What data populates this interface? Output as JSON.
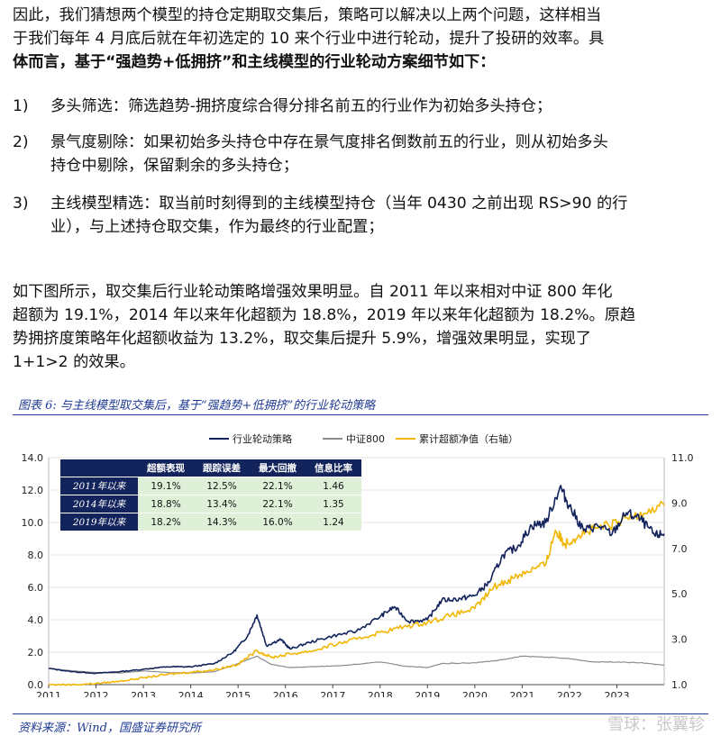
{
  "intro": {
    "line1": "因此，我们猜想两个模型的持仓定期取交集后，策略可以解决以上两个问题，这样相当",
    "line2": "于我们每年 4 月底后就在年初选定的 10 来个行业中进行轮动，提升了投研的效率。具",
    "line3": "体而言，基于“强趋势+低拥挤”和主线模型的行业轮动方案细节如下："
  },
  "items": [
    {
      "num": "1)",
      "lines": [
        "多头筛选：筛选趋势-拥挤度综合得分排名前五的行业作为初始多头持仓；"
      ]
    },
    {
      "num": "2)",
      "lines": [
        "景气度剔除：如果初始多头持仓中存在景气度排名倒数前五的行业，则从初始多头",
        "持仓中剔除，保留剩余的多头持仓；"
      ]
    },
    {
      "num": "3)",
      "lines": [
        "主线模型精选：取当前时刻得到的主线模型持仓（当年 0430 之前出现 RS>90 的行",
        "业），与上述持仓取交集，作为最终的行业配置；"
      ]
    }
  ],
  "summary": {
    "line1": "如下图所示，取交集后行业轮动策略增强效果明显。自 2011 年以来相对中证 800 年化",
    "line2": "超额为 19.1%，2014 年以来年化超额为 18.8%，2019 年以来年化超额为 18.2%。原趋",
    "line3": "势拥挤度策略年化超额收益为 13.2%，取交集后提升 5.9%，增强效果明显，实现了",
    "line4": "1+1>2 的效果。"
  },
  "figure": {
    "caption": "图表 6:  与主线模型取交集后，基于“强趋势+低拥挤”的行业轮动策略",
    "source": "资料来源：Wind，国盛证券研究所"
  },
  "watermark": "雪球：张翼轸",
  "stats_table": {
    "headers": [
      "",
      "超额表现",
      "跟踪误差",
      "最大回撤",
      "信息比率"
    ],
    "rows": [
      [
        "2011年以来",
        "19.1%",
        "12.5%",
        "22.1%",
        "1.46"
      ],
      [
        "2014年以来",
        "18.8%",
        "13.4%",
        "22.1%",
        "1.35"
      ],
      [
        "2019年以来",
        "18.2%",
        "14.3%",
        "16.0%",
        "1.24"
      ]
    ]
  },
  "chart_data": {
    "type": "line",
    "legend": [
      "行业轮动策略",
      "中证800",
      "累计超额净值（右轴）"
    ],
    "legend_position": "top",
    "colors": {
      "strategy": "#13235b",
      "csi800": "#8c8c8c",
      "excess": "#f2b705"
    },
    "x_ticks": [
      "2011",
      "2012",
      "2013",
      "2014",
      "2015",
      "2016",
      "2017",
      "2018",
      "2019",
      "2020",
      "2021",
      "2022",
      "2023"
    ],
    "y_left_ticks": [
      "0.0",
      "2.0",
      "4.0",
      "6.0",
      "8.0",
      "10.0",
      "12.0",
      "14.0"
    ],
    "y_right_ticks": [
      "1.0",
      "3.0",
      "5.0",
      "7.0",
      "9.0",
      "11.0"
    ],
    "ylim_left": [
      0,
      14
    ],
    "ylim_right": [
      1,
      11
    ],
    "xlim": [
      2011,
      2024
    ],
    "series": [
      {
        "name": "行业轮动策略",
        "axis": "left",
        "points": [
          [
            2011.0,
            1.0
          ],
          [
            2011.5,
            0.8
          ],
          [
            2012.0,
            0.7
          ],
          [
            2012.5,
            0.8
          ],
          [
            2013.0,
            0.95
          ],
          [
            2013.5,
            1.1
          ],
          [
            2014.0,
            1.1
          ],
          [
            2014.5,
            1.3
          ],
          [
            2014.9,
            2.0
          ],
          [
            2015.2,
            3.0
          ],
          [
            2015.4,
            4.3
          ],
          [
            2015.6,
            2.4
          ],
          [
            2015.9,
            2.8
          ],
          [
            2016.1,
            2.2
          ],
          [
            2016.5,
            2.6
          ],
          [
            2017.0,
            3.0
          ],
          [
            2017.5,
            3.3
          ],
          [
            2018.0,
            4.2
          ],
          [
            2018.3,
            4.8
          ],
          [
            2018.6,
            3.9
          ],
          [
            2019.0,
            4.0
          ],
          [
            2019.3,
            5.2
          ],
          [
            2019.7,
            5.3
          ],
          [
            2020.0,
            5.5
          ],
          [
            2020.3,
            6.3
          ],
          [
            2020.6,
            8.0
          ],
          [
            2020.9,
            8.5
          ],
          [
            2021.2,
            9.8
          ],
          [
            2021.5,
            10.0
          ],
          [
            2021.8,
            12.2
          ],
          [
            2022.0,
            11.0
          ],
          [
            2022.3,
            9.5
          ],
          [
            2022.6,
            9.8
          ],
          [
            2022.9,
            9.3
          ],
          [
            2023.2,
            10.6
          ],
          [
            2023.5,
            10.2
          ],
          [
            2023.8,
            9.2
          ],
          [
            2024.0,
            9.3
          ]
        ]
      },
      {
        "name": "中证800",
        "axis": "left",
        "points": [
          [
            2011.0,
            1.0
          ],
          [
            2011.5,
            0.85
          ],
          [
            2012.0,
            0.75
          ],
          [
            2012.5,
            0.72
          ],
          [
            2013.0,
            0.85
          ],
          [
            2013.5,
            0.75
          ],
          [
            2014.0,
            0.72
          ],
          [
            2014.5,
            0.8
          ],
          [
            2014.9,
            1.2
          ],
          [
            2015.4,
            1.75
          ],
          [
            2015.7,
            1.25
          ],
          [
            2016.1,
            1.05
          ],
          [
            2016.5,
            1.1
          ],
          [
            2017.0,
            1.15
          ],
          [
            2017.5,
            1.25
          ],
          [
            2018.0,
            1.4
          ],
          [
            2018.5,
            1.15
          ],
          [
            2019.0,
            1.05
          ],
          [
            2019.3,
            1.3
          ],
          [
            2020.0,
            1.35
          ],
          [
            2020.5,
            1.5
          ],
          [
            2021.0,
            1.75
          ],
          [
            2021.5,
            1.7
          ],
          [
            2022.0,
            1.6
          ],
          [
            2022.5,
            1.4
          ],
          [
            2023.0,
            1.4
          ],
          [
            2023.5,
            1.35
          ],
          [
            2024.0,
            1.2
          ]
        ]
      },
      {
        "name": "累计超额净值（右轴）",
        "axis": "right",
        "points": [
          [
            2011.0,
            1.0
          ],
          [
            2011.6,
            1.0
          ],
          [
            2012.0,
            1.05
          ],
          [
            2012.5,
            1.15
          ],
          [
            2013.0,
            1.3
          ],
          [
            2013.5,
            1.45
          ],
          [
            2014.0,
            1.55
          ],
          [
            2014.5,
            1.65
          ],
          [
            2015.0,
            1.9
          ],
          [
            2015.4,
            2.5
          ],
          [
            2015.7,
            2.2
          ],
          [
            2016.1,
            2.35
          ],
          [
            2016.6,
            2.5
          ],
          [
            2017.0,
            2.75
          ],
          [
            2017.5,
            3.0
          ],
          [
            2018.0,
            3.3
          ],
          [
            2018.5,
            3.55
          ],
          [
            2019.0,
            3.75
          ],
          [
            2019.5,
            4.05
          ],
          [
            2020.0,
            4.35
          ],
          [
            2020.4,
            5.3
          ],
          [
            2020.8,
            5.7
          ],
          [
            2021.1,
            6.0
          ],
          [
            2021.5,
            6.3
          ],
          [
            2021.7,
            7.8
          ],
          [
            2021.9,
            7.2
          ],
          [
            2022.2,
            7.6
          ],
          [
            2022.6,
            7.9
          ],
          [
            2023.0,
            8.1
          ],
          [
            2023.5,
            8.6
          ],
          [
            2024.0,
            8.9
          ]
        ]
      }
    ]
  }
}
